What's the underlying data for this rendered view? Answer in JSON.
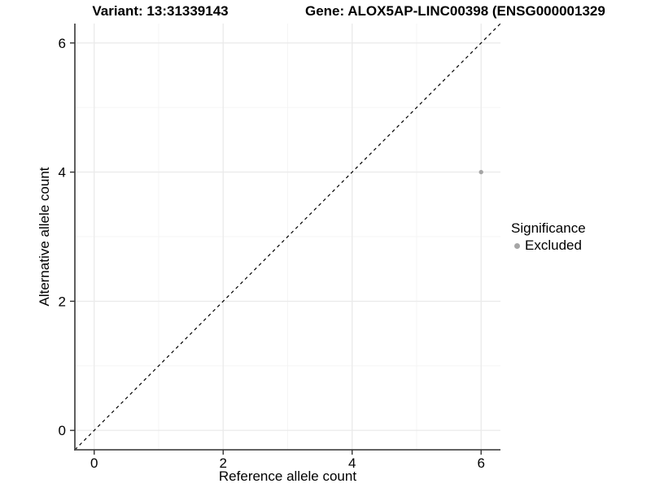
{
  "titles": {
    "variant": "Variant: 13:31339143",
    "gene": "Gene: ALOX5AP-LINC00398 (ENSG000001329"
  },
  "legend": {
    "title": "Significance",
    "items": [
      {
        "label": "Excluded",
        "color": "#a6a6a6"
      }
    ]
  },
  "colors": {
    "grid_major": "#ebebeb",
    "grid_minor": "#f4f4f4",
    "axis_line": "#4d4d4d",
    "tick_mark": "#333333",
    "tick_text": "#000000",
    "point": "#a6a6a6",
    "identity_line": "#000000"
  },
  "chart_data": {
    "type": "scatter",
    "title_left": "Variant: 13:31339143",
    "title_right": "Gene: ALOX5AP-LINC00398 (ENSG000001329",
    "xlabel": "Reference allele count",
    "ylabel": "Alternative allele count",
    "xlim": [
      -0.3,
      6.3
    ],
    "ylim": [
      -0.3,
      6.3
    ],
    "x_ticks": [
      0,
      2,
      4,
      6
    ],
    "y_ticks": [
      0,
      2,
      4,
      6
    ],
    "x_minor_ticks": [
      1,
      3,
      5
    ],
    "y_minor_ticks": [
      1,
      3,
      5
    ],
    "grid": "major-and-minor",
    "legend_position": "right",
    "legend_title": "Significance",
    "series": [
      {
        "name": "Excluded",
        "color": "#a6a6a6",
        "points": [
          {
            "x": 6,
            "y": 4
          }
        ]
      }
    ],
    "reference_line": {
      "kind": "identity",
      "style": "dashed",
      "color": "#000000"
    }
  }
}
